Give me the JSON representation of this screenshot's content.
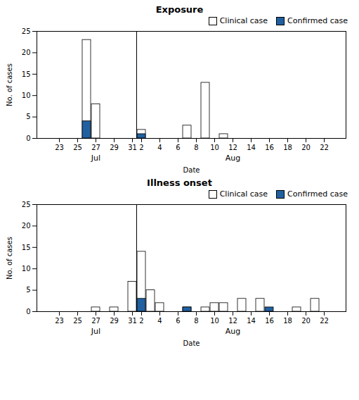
{
  "chart_data": [
    {
      "type": "bar",
      "title": "Exposure",
      "categories": [
        null,
        "23",
        null,
        "25",
        null,
        "27",
        null,
        "29",
        null,
        "31",
        "2",
        null,
        "4",
        null,
        "6",
        null,
        "8",
        null,
        "10",
        null,
        "12",
        null,
        "14",
        null,
        "16",
        null,
        "18",
        null,
        "20",
        null,
        "22",
        null
      ],
      "series": [
        {
          "name": "Clinical case",
          "color": "#ffffff",
          "values": [
            0,
            0,
            0,
            0,
            23,
            8,
            0,
            0,
            0,
            0,
            2,
            0,
            0,
            0,
            0,
            3,
            0,
            13,
            0,
            1,
            0,
            0,
            0,
            0,
            0,
            0,
            0,
            0,
            0,
            0,
            0,
            0
          ]
        },
        {
          "name": "Confirmed case",
          "color": "#2060a0",
          "values": [
            0,
            0,
            0,
            0,
            4,
            0,
            0,
            0,
            0,
            0,
            1,
            0,
            0,
            0,
            0,
            0,
            0,
            0,
            0,
            0,
            0,
            0,
            0,
            0,
            0,
            0,
            0,
            0,
            0,
            0,
            0,
            0
          ]
        }
      ],
      "ylim": [
        0,
        25
      ],
      "yticks": [
        0,
        5,
        10,
        15,
        20,
        25
      ],
      "ylabel": "No. of cases",
      "xlabel": "Date",
      "annotations": [
        {
          "text": "Jul",
          "x": "27"
        },
        {
          "text": "Aug",
          "x": "12"
        }
      ],
      "legend": "upper right",
      "grid": false
    },
    {
      "type": "bar",
      "title": "Illness onset",
      "categories": [
        null,
        "23",
        null,
        "25",
        null,
        "27",
        null,
        "29",
        null,
        "31",
        "2",
        null,
        "4",
        null,
        "6",
        null,
        "8",
        null,
        "10",
        null,
        "12",
        null,
        "14",
        null,
        "16",
        null,
        "18",
        null,
        "20",
        null,
        "22",
        null
      ],
      "series": [
        {
          "name": "Clinical case",
          "color": "#ffffff",
          "values": [
            0,
            0,
            0,
            0,
            0,
            1,
            0,
            1,
            0,
            7,
            14,
            5,
            2,
            0,
            0,
            1,
            0,
            1,
            2,
            2,
            0,
            3,
            0,
            3,
            0,
            0,
            0,
            1,
            0,
            3,
            0,
            0
          ]
        },
        {
          "name": "Confirmed case",
          "color": "#2060a0",
          "values": [
            0,
            0,
            0,
            0,
            0,
            0,
            0,
            0,
            0,
            0,
            3,
            0,
            0,
            0,
            0,
            1,
            0,
            0,
            0,
            0,
            0,
            0,
            0,
            0,
            1,
            0,
            0,
            0,
            0,
            0,
            0,
            0
          ]
        }
      ],
      "ylim": [
        0,
        25
      ],
      "yticks": [
        0,
        5,
        10,
        15,
        20,
        25
      ],
      "ylabel": "No. of cases",
      "xlabel": "Date",
      "annotations": [
        {
          "text": "Jul",
          "x": "27"
        },
        {
          "text": "Aug",
          "x": "12"
        }
      ],
      "legend": "upper right",
      "grid": false
    }
  ]
}
